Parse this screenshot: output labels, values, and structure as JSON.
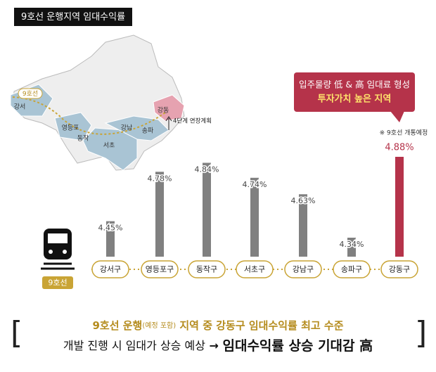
{
  "header": {
    "title": "9호선 운행지역 임대수익률"
  },
  "map": {
    "line_label": "9호선",
    "districts": [
      "강서",
      "영등포",
      "동작",
      "서초",
      "강남",
      "송파",
      "강동"
    ],
    "extension_note": "4단계 연장계획"
  },
  "callout": {
    "line1": "입주물량 低 & 高 임대료 형성",
    "line2": "투자가치 높은 지역"
  },
  "note": "※ 9호선 개통예정",
  "train_label": "9호선",
  "chart_data": {
    "type": "bar",
    "categories": [
      "강서구",
      "영등포구",
      "동작구",
      "서초구",
      "강남구",
      "송파구",
      "강동구"
    ],
    "values": [
      4.45,
      4.78,
      4.84,
      4.74,
      4.63,
      4.34,
      4.88
    ],
    "value_labels": [
      "4.45%",
      "4.78%",
      "4.84%",
      "4.74%",
      "4.63%",
      "4.34%",
      "4.88%"
    ],
    "colors": [
      "#808080",
      "#808080",
      "#808080",
      "#808080",
      "#808080",
      "#808080",
      "#b5334a"
    ]
  },
  "summary": {
    "line1": [
      "9호선 운행",
      "(예정 포함)",
      " 지역 중 강동구 임대수익률 최고 수준"
    ],
    "line2": [
      "개발 진행 시 임대가 상승 예상",
      " → ",
      "임대수익률 상승 기대감 高"
    ]
  }
}
